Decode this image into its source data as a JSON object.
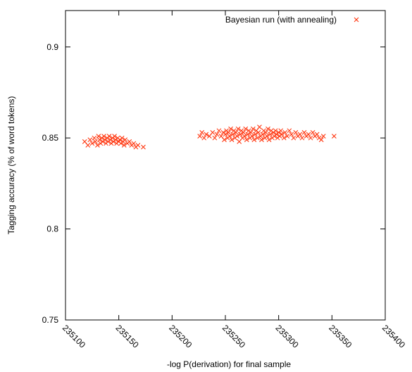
{
  "chart_data": {
    "type": "scatter",
    "xlabel": "-log P(derivation) for final sample",
    "ylabel": "Tagging accuracy (% of word tokens)",
    "xlim": [
      235100,
      235400
    ],
    "ylim": [
      0.75,
      0.92
    ],
    "x_ticks": [
      235100,
      235150,
      235200,
      235250,
      235300,
      235350,
      235400
    ],
    "y_ticks": [
      0.75,
      0.8,
      0.85,
      0.9
    ],
    "y_tick_labels": [
      "0.75",
      "0.8",
      "0.85",
      "0.9"
    ],
    "grid": false,
    "legend_position": "top-right",
    "series": [
      {
        "name": "Bayesian run (with annealing)",
        "color": "#ff2a00",
        "marker": "x",
        "points": [
          [
            235118,
            0.848
          ],
          [
            235121,
            0.846
          ],
          [
            235123,
            0.849
          ],
          [
            235125,
            0.847
          ],
          [
            235127,
            0.85
          ],
          [
            235128,
            0.848
          ],
          [
            235130,
            0.846
          ],
          [
            235131,
            0.851
          ],
          [
            235132,
            0.849
          ],
          [
            235133,
            0.847
          ],
          [
            235134,
            0.85
          ],
          [
            235135,
            0.848
          ],
          [
            235136,
            0.851
          ],
          [
            235137,
            0.849
          ],
          [
            235138,
            0.847
          ],
          [
            235139,
            0.85
          ],
          [
            235140,
            0.848
          ],
          [
            235141,
            0.851
          ],
          [
            235142,
            0.849
          ],
          [
            235143,
            0.847
          ],
          [
            235144,
            0.85
          ],
          [
            235145,
            0.848
          ],
          [
            235146,
            0.851
          ],
          [
            235147,
            0.849
          ],
          [
            235148,
            0.847
          ],
          [
            235149,
            0.85
          ],
          [
            235150,
            0.848
          ],
          [
            235151,
            0.849
          ],
          [
            235152,
            0.847
          ],
          [
            235153,
            0.85
          ],
          [
            235154,
            0.848
          ],
          [
            235155,
            0.846
          ],
          [
            235156,
            0.849
          ],
          [
            235158,
            0.847
          ],
          [
            235160,
            0.848
          ],
          [
            235162,
            0.846
          ],
          [
            235164,
            0.847
          ],
          [
            235166,
            0.845
          ],
          [
            235168,
            0.846
          ],
          [
            235173,
            0.845
          ],
          [
            235226,
            0.851
          ],
          [
            235228,
            0.853
          ],
          [
            235230,
            0.85
          ],
          [
            235232,
            0.852
          ],
          [
            235235,
            0.851
          ],
          [
            235238,
            0.853
          ],
          [
            235240,
            0.85
          ],
          [
            235242,
            0.852
          ],
          [
            235244,
            0.854
          ],
          [
            235246,
            0.851
          ],
          [
            235248,
            0.853
          ],
          [
            235249,
            0.849
          ],
          [
            235250,
            0.852
          ],
          [
            235251,
            0.854
          ],
          [
            235252,
            0.85
          ],
          [
            235253,
            0.853
          ],
          [
            235254,
            0.851
          ],
          [
            235255,
            0.855
          ],
          [
            235256,
            0.849
          ],
          [
            235257,
            0.852
          ],
          [
            235258,
            0.854
          ],
          [
            235259,
            0.85
          ],
          [
            235260,
            0.853
          ],
          [
            235261,
            0.851
          ],
          [
            235262,
            0.855
          ],
          [
            235263,
            0.848
          ],
          [
            235264,
            0.852
          ],
          [
            235265,
            0.854
          ],
          [
            235266,
            0.85
          ],
          [
            235267,
            0.853
          ],
          [
            235268,
            0.851
          ],
          [
            235269,
            0.855
          ],
          [
            235270,
            0.849
          ],
          [
            235271,
            0.852
          ],
          [
            235272,
            0.854
          ],
          [
            235273,
            0.85
          ],
          [
            235274,
            0.853
          ],
          [
            235275,
            0.851
          ],
          [
            235276,
            0.855
          ],
          [
            235277,
            0.849
          ],
          [
            235278,
            0.852
          ],
          [
            235279,
            0.854
          ],
          [
            235280,
            0.85
          ],
          [
            235281,
            0.853
          ],
          [
            235282,
            0.856
          ],
          [
            235283,
            0.851
          ],
          [
            235284,
            0.849
          ],
          [
            235285,
            0.852
          ],
          [
            235286,
            0.854
          ],
          [
            235287,
            0.85
          ],
          [
            235288,
            0.853
          ],
          [
            235289,
            0.851
          ],
          [
            235290,
            0.855
          ],
          [
            235291,
            0.849
          ],
          [
            235292,
            0.852
          ],
          [
            235293,
            0.854
          ],
          [
            235294,
            0.85
          ],
          [
            235295,
            0.853
          ],
          [
            235296,
            0.851
          ],
          [
            235297,
            0.854
          ],
          [
            235298,
            0.852
          ],
          [
            235299,
            0.85
          ],
          [
            235300,
            0.853
          ],
          [
            235301,
            0.851
          ],
          [
            235302,
            0.854
          ],
          [
            235303,
            0.852
          ],
          [
            235305,
            0.85
          ],
          [
            235306,
            0.853
          ],
          [
            235308,
            0.851
          ],
          [
            235310,
            0.854
          ],
          [
            235312,
            0.852
          ],
          [
            235314,
            0.85
          ],
          [
            235316,
            0.853
          ],
          [
            235318,
            0.851
          ],
          [
            235320,
            0.852
          ],
          [
            235322,
            0.85
          ],
          [
            235324,
            0.853
          ],
          [
            235326,
            0.851
          ],
          [
            235328,
            0.852
          ],
          [
            235330,
            0.85
          ],
          [
            235332,
            0.853
          ],
          [
            235334,
            0.851
          ],
          [
            235336,
            0.852
          ],
          [
            235338,
            0.85
          ],
          [
            235340,
            0.849
          ],
          [
            235342,
            0.851
          ],
          [
            235352,
            0.851
          ]
        ]
      }
    ]
  }
}
